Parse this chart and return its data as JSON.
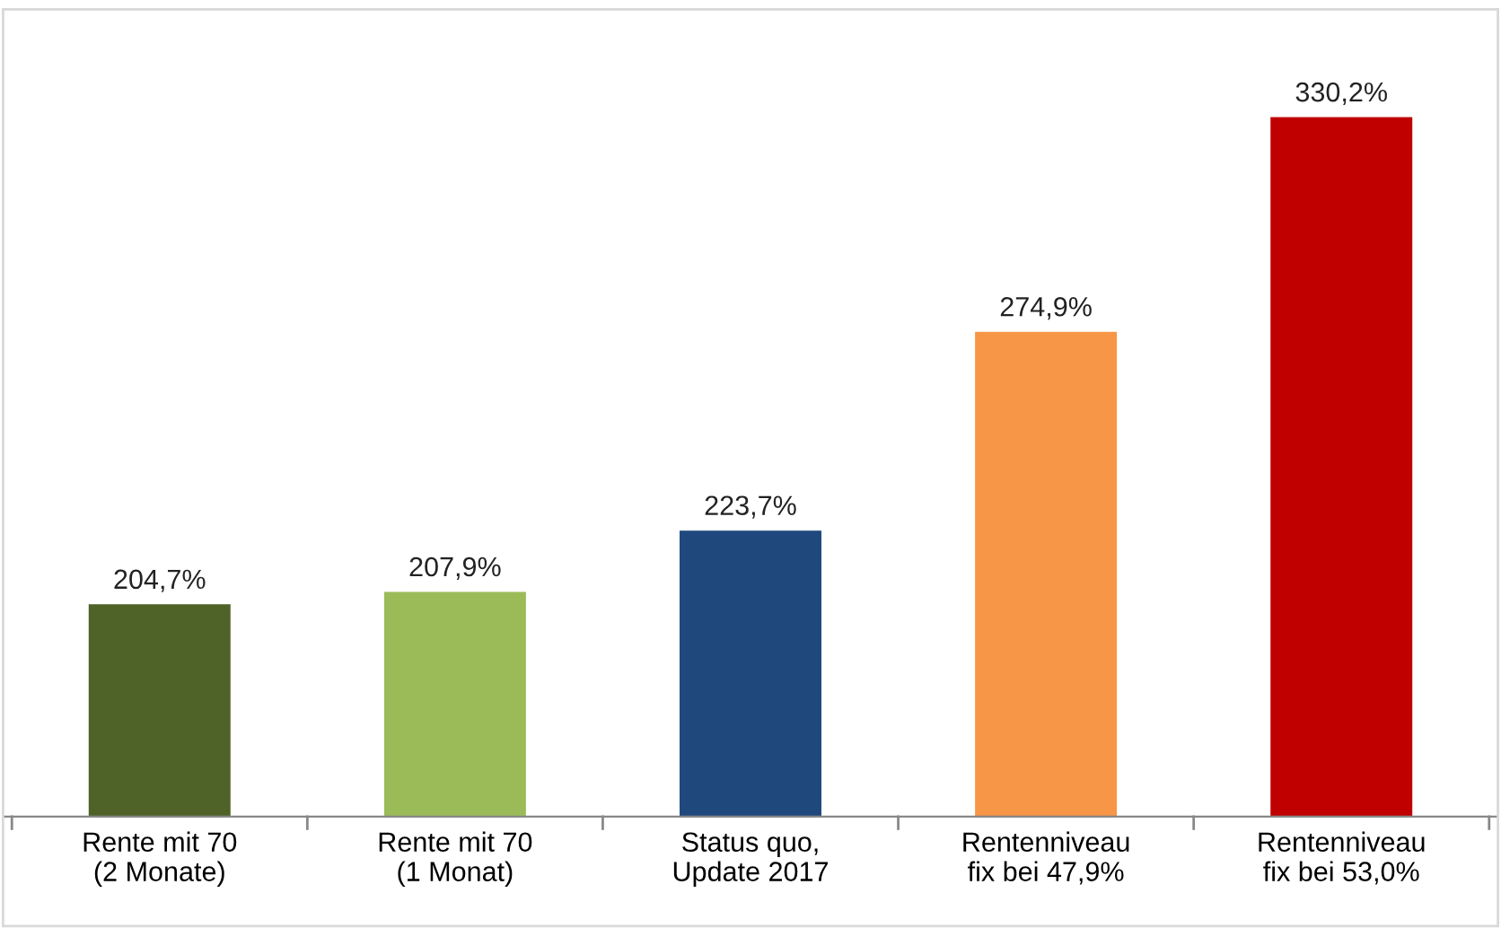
{
  "chart_data": {
    "type": "bar",
    "categories": [
      "Rente mit 70\n(2 Monate)",
      "Rente mit 70\n(1 Monat)",
      "Status quo,\nUpdate 2017",
      "Rentenniveau\nfix bei 47,9%",
      "Rentenniveau\nfix bei 53,0%"
    ],
    "values": [
      204.7,
      207.9,
      223.7,
      274.9,
      330.2
    ],
    "colors": [
      "#4f6228",
      "#9bbb59",
      "#1f497d",
      "#f79646",
      "#c00000"
    ],
    "value_labels": [
      "204,7%",
      "207,9%",
      "223,7%",
      "274,9%",
      "330,2%"
    ],
    "ylim": [
      150,
      358
    ],
    "tick_labels": "x",
    "grid": false,
    "legend": false
  }
}
